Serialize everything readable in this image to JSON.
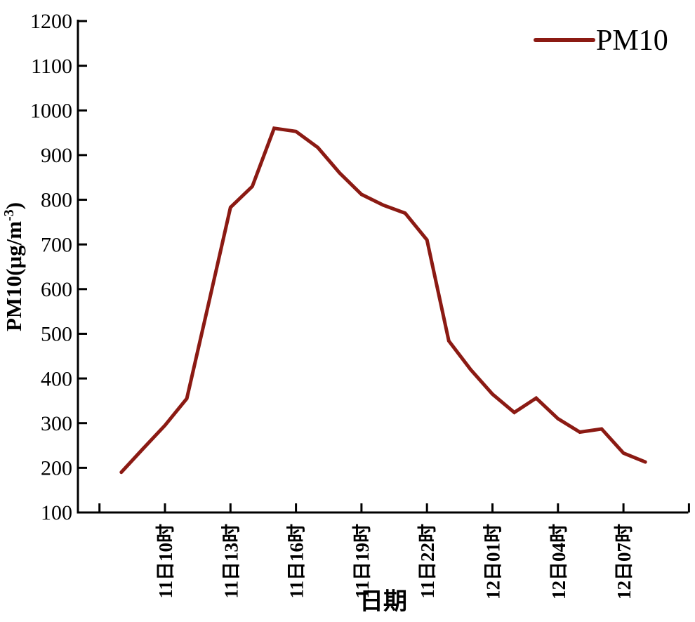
{
  "chart_data": {
    "type": "line",
    "title": "",
    "xlabel": "日期",
    "ylabel": "PM10(μg/m-3)",
    "ylabel_parts": {
      "base": "PM10(μg/m",
      "superscript": "-3",
      "close": ")"
    },
    "legend": {
      "position": "top-right",
      "entries": [
        {
          "label": "PM10",
          "color": "#8B1A13"
        }
      ]
    },
    "background": "#FFFFFF",
    "axis_color": "#000000",
    "grid": false,
    "ylim": [
      100,
      1200
    ],
    "ytick_step": 100,
    "ytick_labels": [
      "100",
      "200",
      "300",
      "400",
      "500",
      "600",
      "700",
      "800",
      "900",
      "1000",
      "1100",
      "1200"
    ],
    "xtick_labels": [
      "11日10时",
      "11日13时",
      "11日16时",
      "11日19时",
      "11日22时",
      "12日01时",
      "12日04时",
      "12日07时"
    ],
    "x": [
      "11日08时",
      "11日09时",
      "11日10时",
      "11日11时",
      "11日12时",
      "11日13时",
      "11日14时",
      "11日15时",
      "11日16时",
      "11日17时",
      "11日18时",
      "11日19时",
      "11日20时",
      "11日21时",
      "11日22时",
      "11日23时",
      "12日00时",
      "12日01时",
      "12日02时",
      "12日03时",
      "12日04时",
      "12日05时",
      "12日06时",
      "12日07时",
      "12日08时"
    ],
    "series": [
      {
        "name": "PM10",
        "color": "#8B1A13",
        "values": [
          190,
          243,
          295,
          355,
          568,
          783,
          830,
          960,
          953,
          917,
          860,
          812,
          788,
          770,
          710,
          484,
          420,
          365,
          324,
          356,
          310,
          280,
          287,
          233,
          213
        ]
      }
    ]
  }
}
